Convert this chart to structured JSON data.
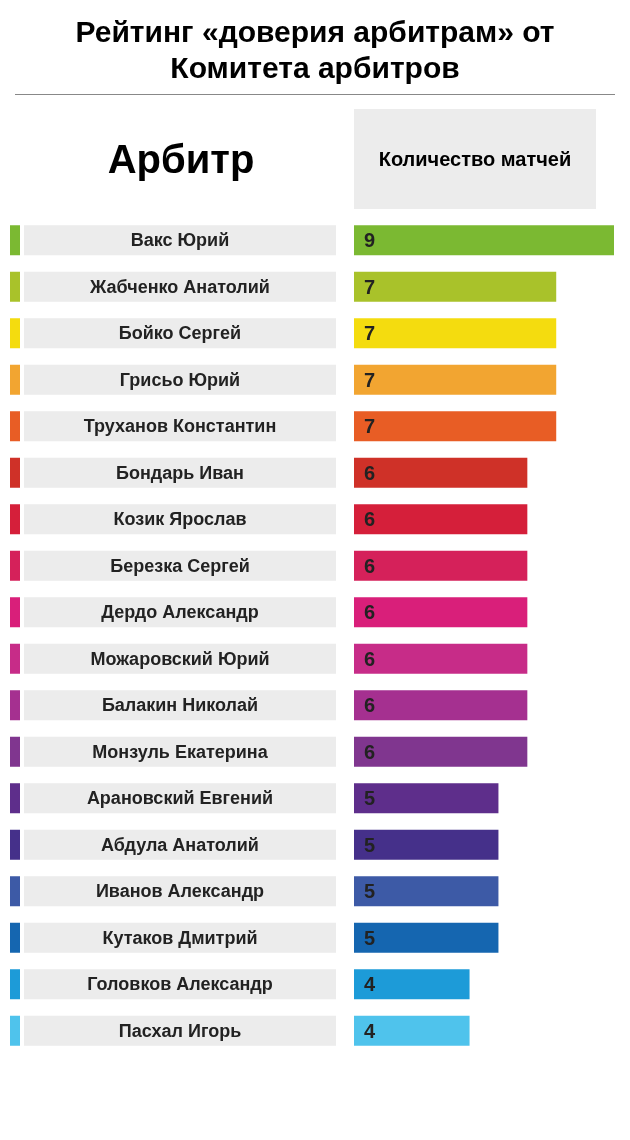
{
  "chart_data": {
    "type": "bar",
    "orientation": "horizontal",
    "title": "Рейтинг «доверия арбитрам» от Комитета арбитров",
    "ylabel": "Арбитр",
    "xlabel": "Количество матчей",
    "data_labels": true,
    "categories": [
      "Вакс Юрий",
      "Жабченко Анатолий",
      "Бойко Сергей",
      "Грисьо Юрий",
      "Труханов Константин",
      "Бондарь Иван",
      "Козик Ярослав",
      "Березка Сергей",
      "Дердо Александр",
      "Можаровский Юрий",
      "Балакин Николай",
      "Монзуль Екатерина",
      "Арановский Евгений",
      "Абдула Анатолий",
      "Иванов Александр",
      "Кутаков Дмитрий",
      "Головков Александр",
      "Пасхал Игорь"
    ],
    "values": [
      9,
      7,
      7,
      7,
      7,
      6,
      6,
      6,
      6,
      6,
      6,
      6,
      5,
      5,
      5,
      5,
      4,
      4
    ],
    "colors": [
      "#7bb932",
      "#a9c22a",
      "#f4dc0f",
      "#f2a531",
      "#e85d25",
      "#cf3128",
      "#d51f3a",
      "#d5215a",
      "#d91f7a",
      "#c72c88",
      "#a53090",
      "#80368f",
      "#5e2e8b",
      "#45308a",
      "#3d5aa6",
      "#1566b0",
      "#1d9bd8",
      "#4fc3ec"
    ]
  }
}
